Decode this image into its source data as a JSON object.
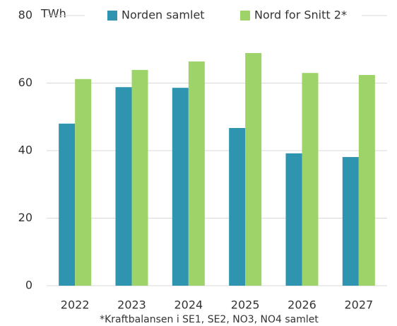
{
  "chart_data": {
    "type": "bar",
    "y_label": "TWh",
    "categories": [
      "2022",
      "2023",
      "2024",
      "2025",
      "2026",
      "2027"
    ],
    "series": [
      {
        "name": "Norden samlet",
        "color": "#2e94b0",
        "values": [
          48,
          58.8,
          58.6,
          46.7,
          39.2,
          38.1
        ]
      },
      {
        "name": "Nord for Snitt 2*",
        "color": "#9ed36a",
        "values": [
          61.2,
          63.9,
          66.4,
          68.9,
          63.0,
          62.4
        ]
      }
    ],
    "ylim": [
      0,
      80
    ],
    "yticks": [
      0,
      20,
      40,
      60,
      80
    ],
    "grid": true,
    "footnote": "*Kraftbalansen i SE1, SE2, NO3, NO4 samlet"
  }
}
